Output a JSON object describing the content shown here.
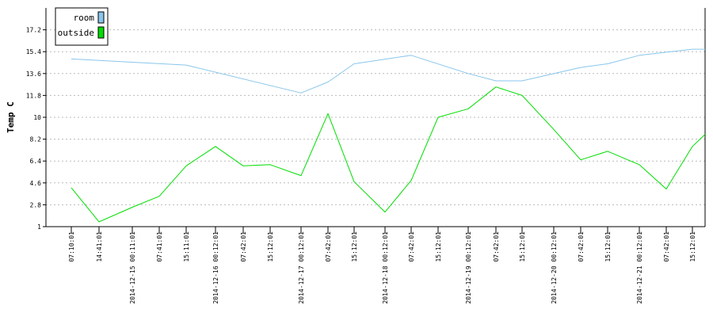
{
  "chart_data": {
    "type": "line",
    "ylabel": "Temp C",
    "ylim": [
      1,
      19
    ],
    "yticks": [
      "1",
      "2.8",
      "4.6",
      "6.4",
      "8.2",
      "10",
      "11.8",
      "13.6",
      "15.4",
      "17.2"
    ],
    "xticks": [
      "07:10:01",
      "14:41:01",
      "2014-12-15 00:11:01",
      "07:41:01",
      "15:11:01",
      "2014-12-16 00:12:01",
      "07:42:01",
      "15:12:01",
      "2014-12-17 00:12:01",
      "07:42:01",
      "15:12:01",
      "2014-12-18 00:12:01",
      "07:42:01",
      "15:12:01",
      "2014-12-19 00:12:01",
      "07:42:01",
      "15:12:01",
      "2014-12-20 00:12:01",
      "07:42:01",
      "15:12:01",
      "2014-12-21 00:12:01",
      "07:42:01",
      "15:12:01"
    ],
    "x_range": [
      "07:10:01",
      "15:12:01"
    ],
    "grid": "horizontal",
    "legend_position": "top-left",
    "series": [
      {
        "name": "room",
        "color": "#88c6ec",
        "x": [
          0,
          4,
          8,
          9,
          10,
          12,
          14,
          15,
          16,
          18,
          19,
          20,
          22,
          23
        ],
        "y": [
          14.8,
          14.3,
          12.0,
          12.9,
          14.4,
          15.1,
          13.6,
          13.0,
          13.0,
          14.1,
          14.4,
          15.1,
          15.6,
          15.6
        ]
      },
      {
        "name": "outside",
        "color": "#00dd00",
        "x": [
          0,
          1,
          2,
          3,
          4,
          5,
          6,
          7,
          8,
          9,
          10,
          11,
          12,
          13,
          14,
          15,
          16,
          17,
          18,
          19,
          20,
          21,
          22,
          23
        ],
        "y": [
          4.2,
          1.4,
          2.6,
          3.5,
          6.0,
          7.6,
          6.0,
          6.1,
          5.2,
          10.3,
          4.7,
          2.2,
          4.8,
          10.0,
          10.7,
          12.5,
          11.8,
          9.0,
          6.5,
          7.2,
          6.1,
          4.1,
          7.6,
          8.6
        ]
      }
    ]
  }
}
